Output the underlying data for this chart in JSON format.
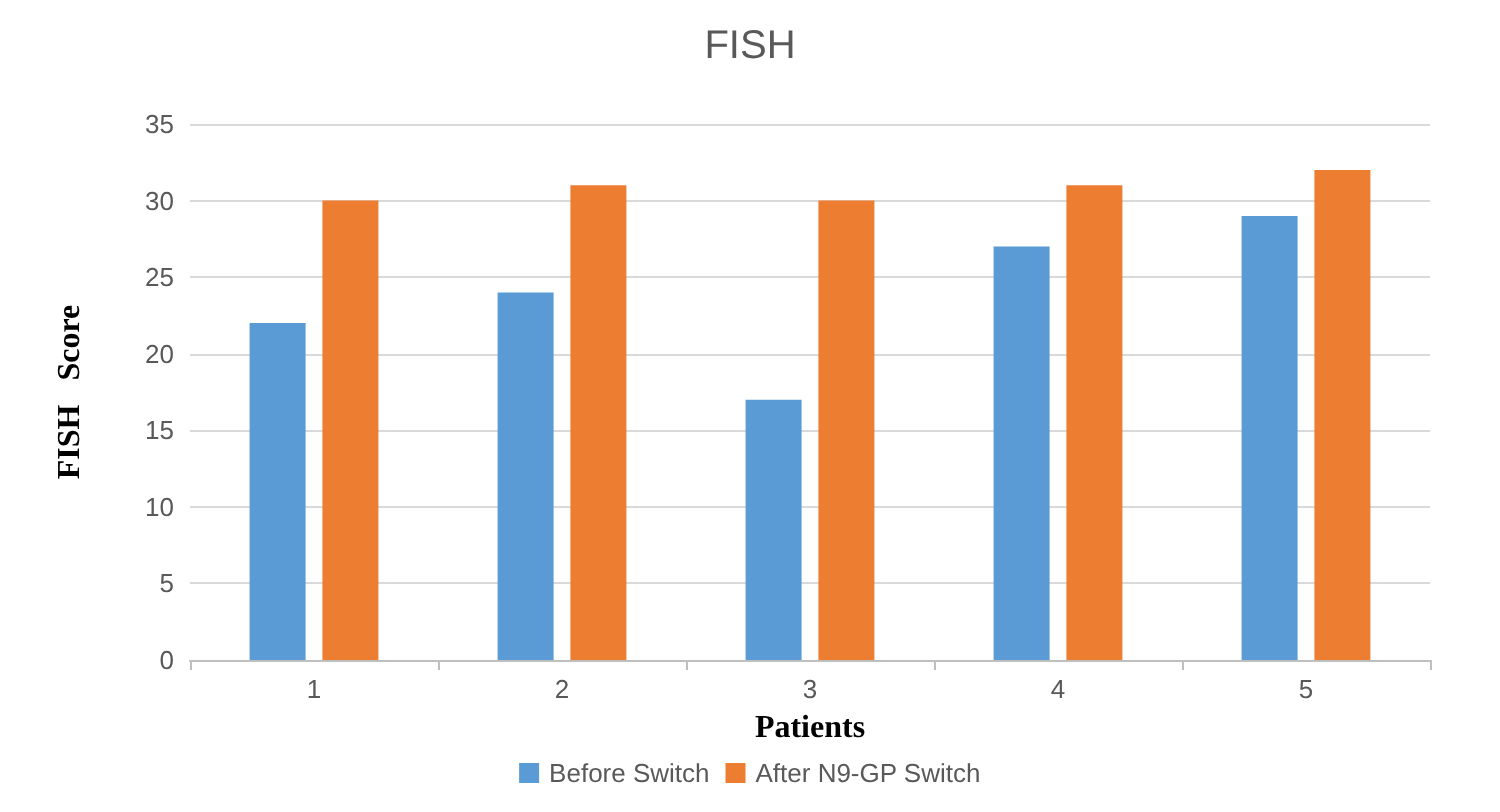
{
  "chart_data": {
    "type": "bar",
    "title": "FISH",
    "xlabel": "Patients",
    "ylabel": "FISH   Score",
    "categories": [
      "1",
      "2",
      "3",
      "4",
      "5"
    ],
    "series": [
      {
        "name": "Before Switch",
        "color": "#5b9bd5",
        "values": [
          22,
          24,
          17,
          27,
          29
        ]
      },
      {
        "name": "After N9-GP Switch",
        "color": "#ed7d31",
        "values": [
          30,
          31,
          30,
          31,
          32
        ]
      }
    ],
    "ylim": [
      0,
      35
    ],
    "yticks": [
      0,
      5,
      10,
      15,
      20,
      25,
      30,
      35
    ],
    "grid": "y",
    "legend": "bottom"
  }
}
